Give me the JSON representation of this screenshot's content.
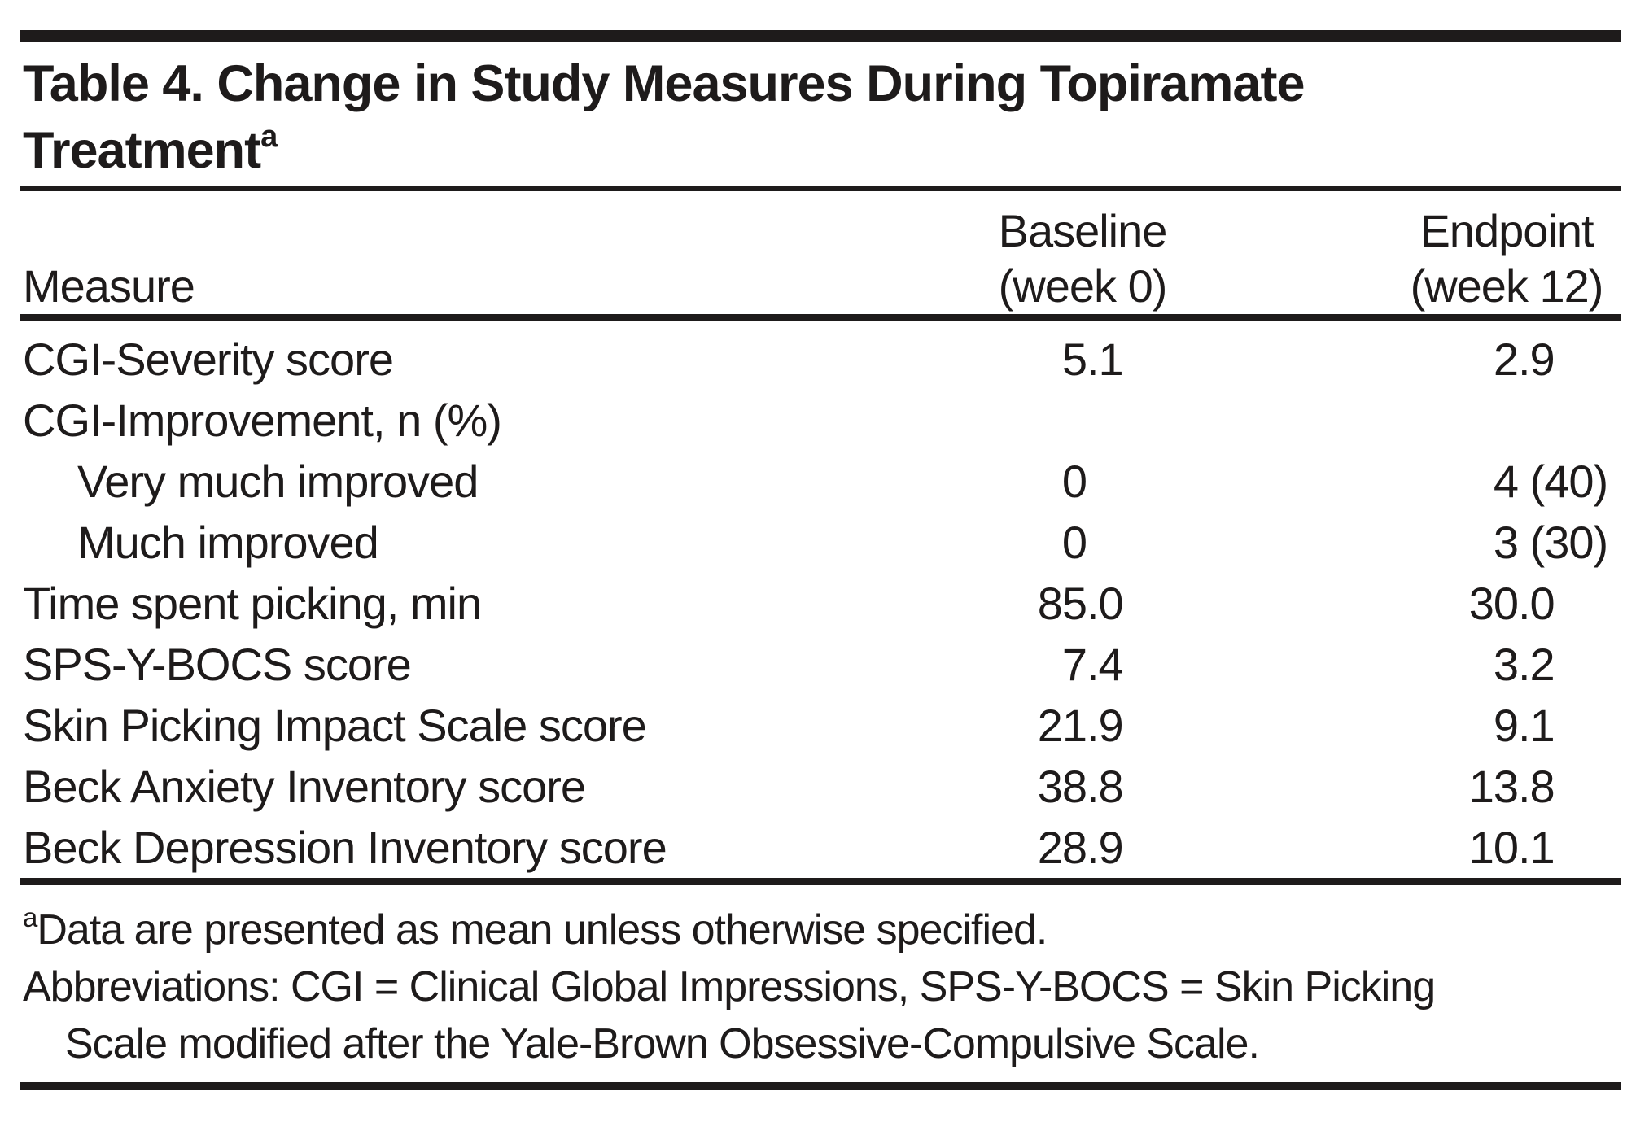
{
  "table": {
    "title_lines": [
      "Table 4. Change in Study Measures During Topiramate",
      "Treatment"
    ],
    "title_superscript": "a",
    "header": {
      "measure": "Measure",
      "baseline": {
        "line1": "Baseline",
        "line2": "(week 0)"
      },
      "endpoint": {
        "line1": "Endpoint",
        "line2": "(week 12)"
      }
    },
    "rows": [
      {
        "measure": "CGI-Severity score",
        "indent": false,
        "baseline": "5.1",
        "endpoint": "2.9"
      },
      {
        "measure": "CGI-Improvement, n (%)",
        "indent": false,
        "baseline": "",
        "endpoint": ""
      },
      {
        "measure": "Very much improved",
        "indent": true,
        "baseline": "0",
        "endpoint": "4 (40)"
      },
      {
        "measure": "Much improved",
        "indent": true,
        "baseline": "0",
        "endpoint": "3 (30)"
      },
      {
        "measure": "Time spent picking, min",
        "indent": false,
        "baseline": "85.0",
        "endpoint": "30.0"
      },
      {
        "measure": "SPS-Y-BOCS score",
        "indent": false,
        "baseline": "7.4",
        "endpoint": "3.2"
      },
      {
        "measure": "Skin Picking Impact Scale score",
        "indent": false,
        "baseline": "21.9",
        "endpoint": "9.1"
      },
      {
        "measure": "Beck Anxiety Inventory score",
        "indent": false,
        "baseline": "38.8",
        "endpoint": "13.8"
      },
      {
        "measure": "Beck Depression Inventory score",
        "indent": false,
        "baseline": "28.9",
        "endpoint": "10.1"
      }
    ],
    "footnotes": {
      "note_superscript": "a",
      "note_text": "Data are presented as mean unless otherwise specified.",
      "abbreviations_line1": "Abbreviations: CGI = Clinical Global Impressions, SPS-Y-BOCS = Skin Picking",
      "abbreviations_line2": "Scale modified after the Yale-Brown Obsessive-Compulsive Scale."
    },
    "colors": {
      "ink": "#1e1b1b",
      "background": "#ffffff"
    }
  },
  "chart_data": {
    "type": "table",
    "title": "Table 4. Change in Study Measures During Topiramate Treatment",
    "columns": [
      "Measure",
      "Baseline (week 0)",
      "Endpoint (week 12)"
    ],
    "rows": [
      [
        "CGI-Severity score",
        "5.1",
        "2.9"
      ],
      [
        "CGI-Improvement, n (%)",
        "",
        ""
      ],
      [
        "Very much improved",
        "0",
        "4 (40)"
      ],
      [
        "Much improved",
        "0",
        "3 (30)"
      ],
      [
        "Time spent picking, min",
        "85.0",
        "30.0"
      ],
      [
        "SPS-Y-BOCS score",
        "7.4",
        "3.2"
      ],
      [
        "Skin Picking Impact Scale score",
        "21.9",
        "9.1"
      ],
      [
        "Beck Anxiety Inventory score",
        "38.8",
        "13.8"
      ],
      [
        "Beck Depression Inventory score",
        "28.9",
        "10.1"
      ]
    ]
  }
}
